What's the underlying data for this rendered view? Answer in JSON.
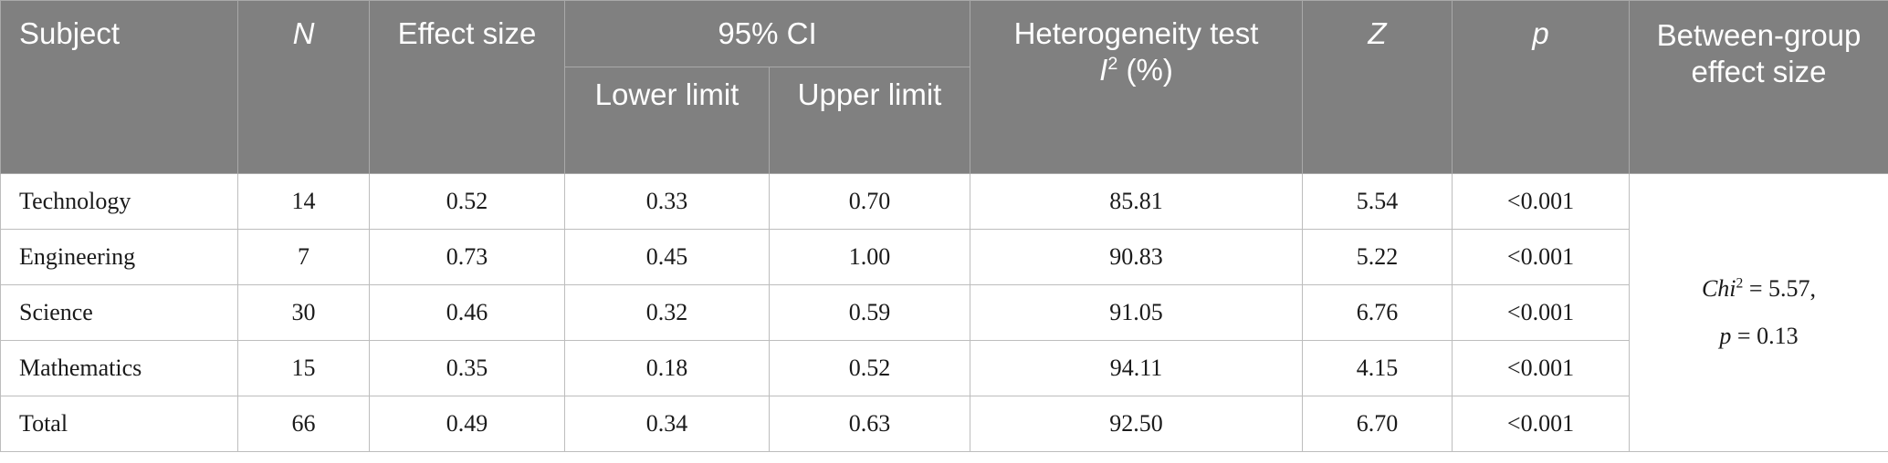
{
  "headers": {
    "subject": "Subject",
    "n": "N",
    "effect_size": "Effect size",
    "ci_group": "95% CI",
    "lower": "Lower limit",
    "upper": "Upper limit",
    "heterogeneity": "Heterogeneity test",
    "i_symbol": "I",
    "i_sup": "2",
    "i_unit": " (%)",
    "z": "Z",
    "p": "p",
    "between": "Between-group effect size"
  },
  "rows": [
    {
      "subject": "Technology",
      "n": "14",
      "effect": "0.52",
      "lower": "0.33",
      "upper": "0.70",
      "i2": "85.81",
      "z": "5.54",
      "p": "<0.001"
    },
    {
      "subject": "Engineering",
      "n": "7",
      "effect": "0.73",
      "lower": "0.45",
      "upper": "1.00",
      "i2": "90.83",
      "z": "5.22",
      "p": "<0.001"
    },
    {
      "subject": "Science",
      "n": "30",
      "effect": "0.46",
      "lower": "0.32",
      "upper": "0.59",
      "i2": "91.05",
      "z": "6.76",
      "p": "<0.001"
    },
    {
      "subject": "Mathematics",
      "n": "15",
      "effect": "0.35",
      "lower": "0.18",
      "upper": "0.52",
      "i2": "94.11",
      "z": "4.15",
      "p": "<0.001"
    },
    {
      "subject": "Total",
      "n": "66",
      "effect": "0.49",
      "lower": "0.34",
      "upper": "0.63",
      "i2": "92.50",
      "z": "6.70",
      "p": "<0.001"
    }
  ],
  "between_group": {
    "chi_label": "Chi",
    "chi_sup": "2",
    "chi_value": " = 5.57,",
    "p_label": "p",
    "p_value": " = 0.13"
  },
  "colors": {
    "header_bg": "#808080",
    "header_text": "#ffffff",
    "grid": "#bdbdbd"
  }
}
